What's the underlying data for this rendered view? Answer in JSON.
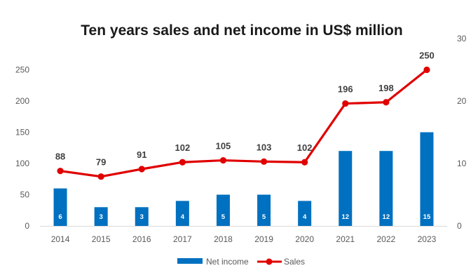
{
  "chart_data": {
    "type": "bar",
    "title": "Ten years sales and net income in US$ million",
    "categories": [
      "2014",
      "2015",
      "2016",
      "2017",
      "2018",
      "2019",
      "2020",
      "2021",
      "2022",
      "2023"
    ],
    "series": [
      {
        "name": "Net income",
        "type": "bar",
        "axis": "right",
        "color": "#0070C0",
        "values": [
          6,
          3,
          3,
          4,
          5,
          5,
          4,
          12,
          12,
          15
        ],
        "labels": [
          "6",
          "3",
          "3",
          "4",
          "5",
          "5",
          "4",
          "12",
          "12",
          "15"
        ]
      },
      {
        "name": "Sales",
        "type": "line",
        "axis": "left",
        "color": "#E00000",
        "values": [
          88,
          79,
          91,
          102,
          105,
          103,
          102,
          196,
          198,
          250
        ],
        "labels": [
          "88",
          "79",
          "91",
          "102",
          "105",
          "103",
          "102",
          "196",
          "198",
          "250"
        ]
      }
    ],
    "y_left": {
      "range": [
        0,
        300
      ],
      "ticks": [
        "0",
        "50",
        "100",
        "150",
        "200",
        "250"
      ]
    },
    "y_right": {
      "range": [
        0,
        30
      ],
      "ticks": [
        "0",
        "10",
        "20",
        "30"
      ]
    },
    "grid": false,
    "legend": "bottom"
  }
}
